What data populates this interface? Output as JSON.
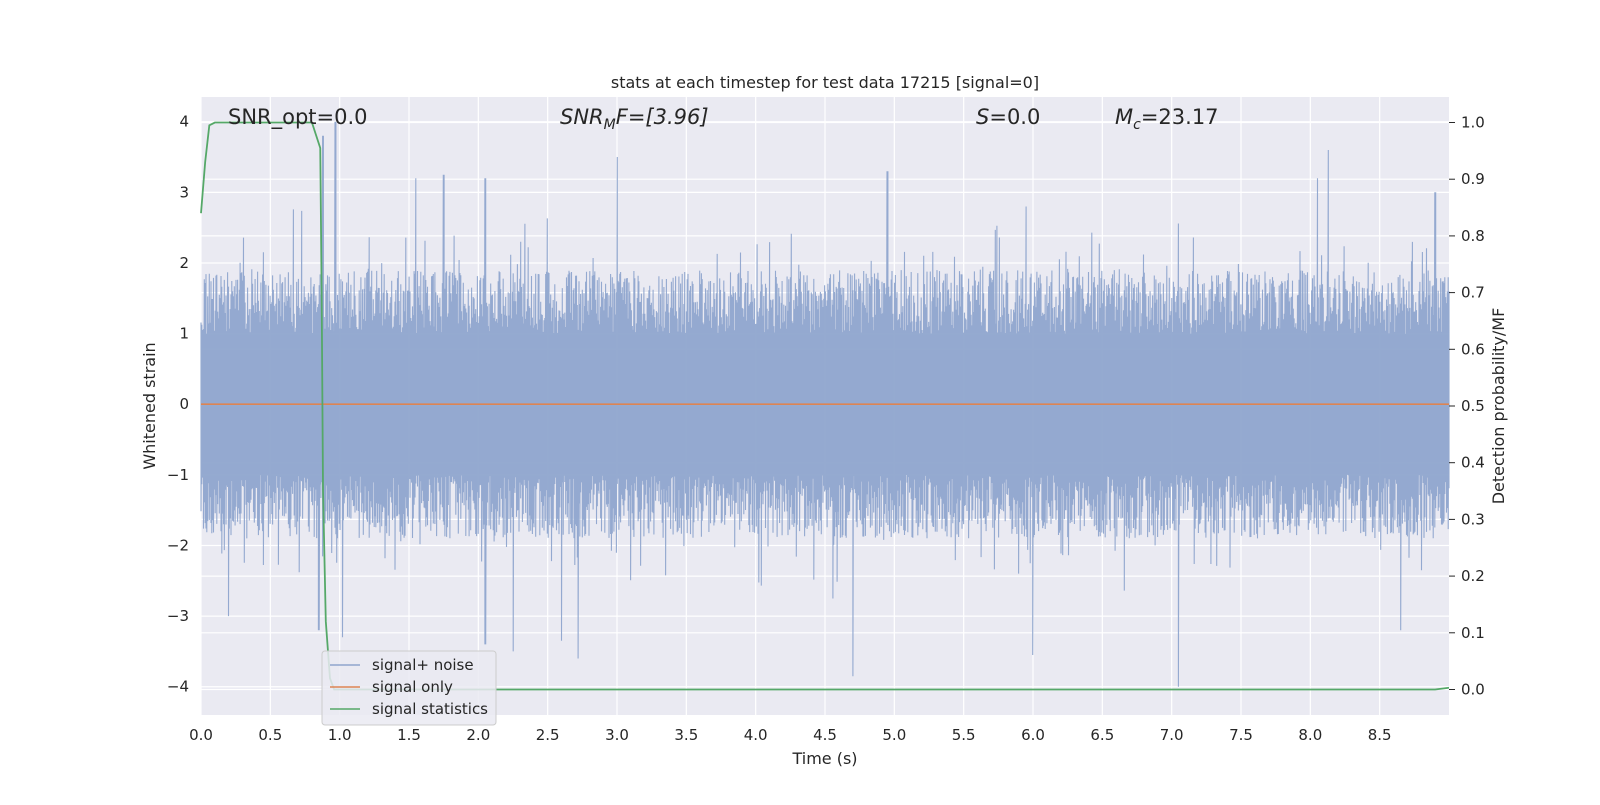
{
  "chart_data": {
    "type": "line",
    "title": "stats at each timestep for test data 17215 [signal=0]",
    "xlabel": "Time (s)",
    "ylabel": "Whitened strain",
    "ylabel_right": "Detection probability/MF",
    "xlim": [
      0.0,
      9.0
    ],
    "ylim": [
      -4.4,
      4.35
    ],
    "ylim_right": [
      -0.045,
      1.045
    ],
    "x_ticks": [
      0.0,
      0.5,
      1.0,
      1.5,
      2.0,
      2.5,
      3.0,
      3.5,
      4.0,
      4.5,
      5.0,
      5.5,
      6.0,
      6.5,
      7.0,
      7.5,
      8.0,
      8.5
    ],
    "x_tick_labels": [
      "0.0",
      "0.5",
      "1.0",
      "1.5",
      "2.0",
      "2.5",
      "3.0",
      "3.5",
      "4.0",
      "4.5",
      "5.0",
      "5.5",
      "6.0",
      "6.5",
      "7.0",
      "7.5",
      "8.0",
      "8.5"
    ],
    "y_ticks": [
      4,
      3,
      2,
      1,
      0,
      -1,
      -2,
      -3,
      -4
    ],
    "y_tick_labels": [
      "4",
      "3",
      "2",
      "1",
      "0",
      "−1",
      "−2",
      "−3",
      "−4"
    ],
    "y_right_ticks": [
      1.0,
      0.9,
      0.8,
      0.7,
      0.6,
      0.5,
      0.4,
      0.3,
      0.2,
      0.1,
      0.0
    ],
    "y_right_tick_labels": [
      "1.0",
      "0.9",
      "0.8",
      "0.7",
      "0.6",
      "0.5",
      "0.4",
      "0.3",
      "0.2",
      "0.1",
      "0.0"
    ],
    "grid": true,
    "legend_position": "lower-left",
    "colors": {
      "plot_background": "#eaeaf2",
      "grid": "#ffffff",
      "signal_noise": "#8fa5cd",
      "signal_only": "#dd8452",
      "signal_statistics": "#55a868"
    },
    "series": [
      {
        "name": "signal+ noise",
        "axis": "left",
        "kind": "noise_band",
        "description_values": {
          "peaks_max": [
            [
              0.97,
              4.0
            ],
            [
              0.88,
              3.8
            ],
            [
              2.05,
              3.2
            ],
            [
              1.75,
              3.25
            ],
            [
              3.0,
              3.5
            ],
            [
              4.95,
              3.3
            ],
            [
              8.05,
              3.2
            ],
            [
              8.13,
              3.6
            ],
            [
              8.9,
              3.0
            ],
            [
              1.55,
              3.2
            ],
            [
              5.95,
              2.8
            ]
          ],
          "troughs_min": [
            [
              0.85,
              -3.2
            ],
            [
              1.02,
              -3.3
            ],
            [
              2.05,
              -3.4
            ],
            [
              2.25,
              -3.5
            ],
            [
              2.72,
              -3.6
            ],
            [
              4.7,
              -3.85
            ],
            [
              6.0,
              -3.55
            ],
            [
              7.05,
              -4.0
            ],
            [
              8.65,
              -3.2
            ],
            [
              0.2,
              -3.0
            ],
            [
              2.6,
              -3.35
            ]
          ]
        }
      },
      {
        "name": "signal only",
        "axis": "left",
        "x": [
          0.0,
          9.0
        ],
        "y": [
          0.0,
          0.0
        ]
      },
      {
        "name": "signal statistics",
        "axis": "right",
        "x": [
          0.0,
          0.03,
          0.06,
          0.1,
          0.5,
          0.8,
          0.86,
          0.87,
          0.88,
          0.9,
          0.93,
          0.96,
          1.0,
          2.0,
          4.0,
          6.0,
          8.0,
          8.9,
          9.0
        ],
        "y": [
          0.84,
          0.93,
          0.995,
          1.0,
          1.0,
          1.0,
          0.955,
          0.7,
          0.35,
          0.12,
          0.02,
          0.0,
          0.0,
          0.0,
          0.0,
          0.0,
          0.0,
          0.0,
          0.003
        ]
      }
    ],
    "annotations": {
      "snr_opt": "SNR_opt=0.0",
      "snr_mf_symbol": "SNR",
      "snr_mf_sub": "M",
      "snr_mf_rest": "F=[3.96]",
      "s_symbol": "S",
      "s_rest": "=0.0",
      "mc_symbol": "M",
      "mc_sub": "c",
      "mc_rest": "=23.17"
    }
  }
}
